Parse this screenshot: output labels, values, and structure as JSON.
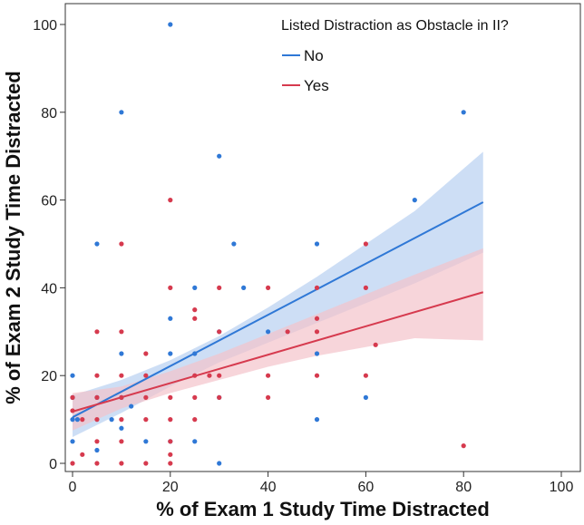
{
  "chart_data": {
    "type": "scatter",
    "xlabel": "% of Exam 1 Study Time Distracted",
    "ylabel": "% of Exam 2 Study Time Distracted",
    "xlim": [
      0,
      105
    ],
    "ylim": [
      0,
      105
    ],
    "xticks": [
      "0",
      "20",
      "40",
      "60",
      "80",
      "100"
    ],
    "yticks": [
      "0",
      "20",
      "40",
      "60",
      "80",
      "100"
    ],
    "xtick_values": [
      0,
      20,
      40,
      60,
      80,
      100
    ],
    "ytick_values": [
      0,
      20,
      40,
      60,
      80,
      100
    ],
    "legend": {
      "title": "Listed Distraction as Obstacle in II?",
      "position": "top-right"
    },
    "series": [
      {
        "name": "No",
        "color": "#2f78d6",
        "band_color": "#bcd3f2",
        "fit": {
          "x": [
            0,
            84
          ],
          "y": [
            10.5,
            59.5
          ]
        },
        "band_upper": {
          "x": [
            0,
            10,
            20,
            30,
            40,
            50,
            60,
            70,
            84
          ],
          "y": [
            15.5,
            19,
            23.5,
            29,
            35.5,
            42.5,
            50,
            57.5,
            71
          ]
        },
        "band_lower": {
          "x": [
            0,
            10,
            20,
            30,
            40,
            50,
            60,
            70,
            84
          ],
          "y": [
            6,
            11.5,
            17.5,
            23,
            27.5,
            32,
            36.5,
            41,
            48
          ]
        },
        "points": [
          [
            20,
            100
          ],
          [
            10,
            80
          ],
          [
            80,
            80
          ],
          [
            30,
            70
          ],
          [
            70,
            60
          ],
          [
            5,
            50
          ],
          [
            33,
            50
          ],
          [
            50,
            50
          ],
          [
            25,
            40
          ],
          [
            35,
            40
          ],
          [
            20,
            33
          ],
          [
            0,
            20
          ],
          [
            10,
            25
          ],
          [
            20,
            25
          ],
          [
            25,
            25
          ],
          [
            30,
            30
          ],
          [
            40,
            30
          ],
          [
            50,
            25
          ],
          [
            10,
            15
          ],
          [
            30,
            15
          ],
          [
            60,
            15
          ],
          [
            12,
            13
          ],
          [
            0,
            15
          ],
          [
            5,
            15
          ],
          [
            0,
            10
          ],
          [
            1,
            10
          ],
          [
            8,
            10
          ],
          [
            10,
            8
          ],
          [
            50,
            10
          ],
          [
            15,
            5
          ],
          [
            20,
            5
          ],
          [
            25,
            5
          ],
          [
            0,
            5
          ],
          [
            5,
            3
          ],
          [
            30,
            0
          ]
        ]
      },
      {
        "name": "Yes",
        "color": "#d63a4e",
        "band_color": "#f3c3ca",
        "fit": {
          "x": [
            0,
            84
          ],
          "y": [
            11.8,
            39
          ]
        },
        "band_upper": {
          "x": [
            0,
            10,
            20,
            30,
            40,
            50,
            60,
            70,
            84
          ],
          "y": [
            16,
            17.5,
            21,
            25,
            29.5,
            34,
            38.5,
            43,
            49
          ]
        },
        "band_lower": {
          "x": [
            0,
            10,
            20,
            30,
            40,
            50,
            60,
            70,
            84
          ],
          "y": [
            7.5,
            12.5,
            16,
            19,
            22,
            24.5,
            26.5,
            28.5,
            28
          ]
        },
        "points": [
          [
            10,
            50
          ],
          [
            60,
            50
          ],
          [
            20,
            60
          ],
          [
            20,
            40
          ],
          [
            30,
            40
          ],
          [
            40,
            40
          ],
          [
            50,
            40
          ],
          [
            60,
            40
          ],
          [
            25,
            35
          ],
          [
            25,
            33
          ],
          [
            50,
            33
          ],
          [
            5,
            30
          ],
          [
            10,
            30
          ],
          [
            30,
            30
          ],
          [
            44,
            30
          ],
          [
            50,
            30
          ],
          [
            62,
            27
          ],
          [
            15,
            25
          ],
          [
            5,
            20
          ],
          [
            10,
            20
          ],
          [
            15,
            20
          ],
          [
            25,
            20
          ],
          [
            28,
            20
          ],
          [
            30,
            20
          ],
          [
            40,
            20
          ],
          [
            50,
            20
          ],
          [
            60,
            20
          ],
          [
            10,
            15
          ],
          [
            15,
            15
          ],
          [
            20,
            15
          ],
          [
            25,
            15
          ],
          [
            30,
            15
          ],
          [
            40,
            15
          ],
          [
            0,
            15
          ],
          [
            5,
            15
          ],
          [
            0,
            12
          ],
          [
            5,
            10
          ],
          [
            10,
            10
          ],
          [
            15,
            10
          ],
          [
            20,
            10
          ],
          [
            25,
            10
          ],
          [
            2,
            10
          ],
          [
            5,
            5
          ],
          [
            10,
            5
          ],
          [
            20,
            5
          ],
          [
            2,
            2
          ],
          [
            20,
            2
          ],
          [
            0,
            0
          ],
          [
            5,
            0
          ],
          [
            10,
            0
          ],
          [
            15,
            0
          ],
          [
            20,
            0
          ],
          [
            80,
            4
          ]
        ]
      }
    ]
  }
}
